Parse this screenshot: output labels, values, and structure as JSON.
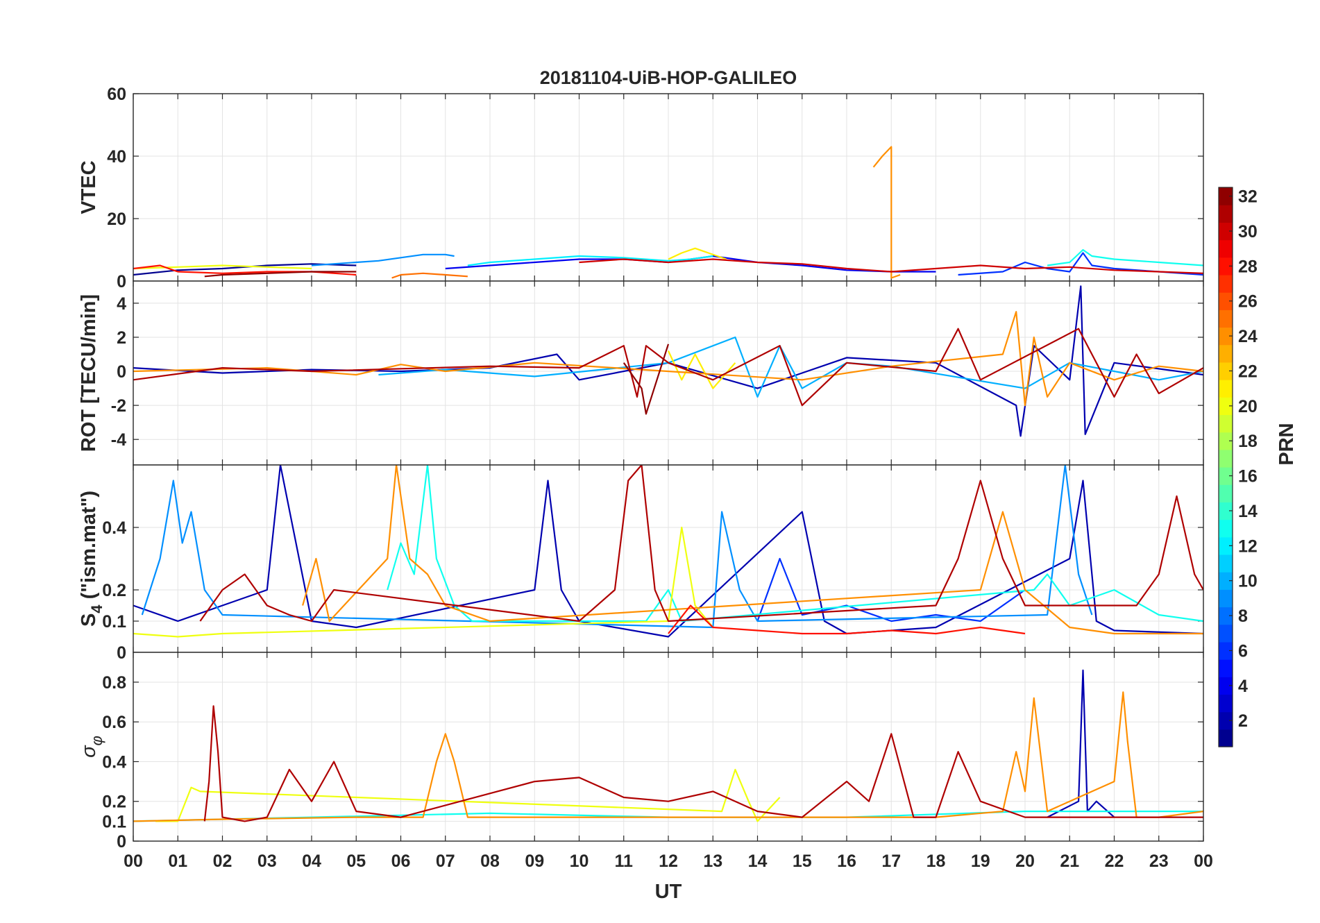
{
  "figure": {
    "title": "20181104-UiB-HOP-GALILEO",
    "xlabel": "UT"
  },
  "chart_data": [
    {
      "type": "line",
      "panel": "vtec",
      "ylabel": "VTEC",
      "xlim": [
        0,
        24
      ],
      "ylim": [
        0,
        60
      ],
      "yticks": [
        0,
        20,
        40,
        60
      ],
      "xtick_labels": [
        "00",
        "01",
        "02",
        "03",
        "04",
        "05",
        "06",
        "07",
        "08",
        "09",
        "10",
        "11",
        "12",
        "13",
        "14",
        "15",
        "16",
        "17",
        "18",
        "19",
        "20",
        "21",
        "22",
        "23",
        "00"
      ],
      "grid": true,
      "series": [
        {
          "prn": 1,
          "x": [
            0,
            1,
            2,
            3,
            4,
            5
          ],
          "y": [
            2,
            3.5,
            4,
            5,
            5.5,
            5
          ]
        },
        {
          "prn": 4,
          "x": [
            7,
            8,
            9,
            10,
            11,
            12,
            13,
            14,
            15,
            16,
            17,
            18
          ],
          "y": [
            4,
            5,
            6,
            7,
            7,
            6,
            8,
            6,
            5,
            3.5,
            3,
            3
          ]
        },
        {
          "prn": 6,
          "x": [
            18.5,
            19.5,
            20,
            20.5,
            21,
            21.3,
            21.5,
            22,
            23,
            24
          ],
          "y": [
            2,
            3,
            6,
            4,
            3,
            9,
            5,
            4,
            3,
            2
          ]
        },
        {
          "prn": 9,
          "x": [
            4,
            5,
            5.5,
            6,
            6.5,
            7,
            7.2
          ],
          "y": [
            5,
            6,
            6.5,
            7.5,
            8.5,
            8.5,
            8
          ]
        },
        {
          "prn": 12,
          "x": [
            7.5,
            8,
            9,
            10,
            11,
            12,
            12.5,
            13
          ],
          "y": [
            5,
            6,
            7,
            8,
            7.5,
            6.5,
            7,
            8
          ]
        },
        {
          "prn": 13,
          "x": [
            20.5,
            21,
            21.3,
            21.5,
            22,
            23,
            24
          ],
          "y": [
            5,
            6,
            10,
            8,
            7,
            6,
            5
          ]
        },
        {
          "prn": 20,
          "x": [
            0,
            1,
            2,
            3,
            4
          ],
          "y": [
            4,
            4.5,
            5,
            4.5,
            4
          ]
        },
        {
          "prn": 21,
          "x": [
            12,
            12.3,
            12.6,
            12.9,
            13.3
          ],
          "y": [
            7,
            9,
            10.5,
            9,
            7
          ]
        },
        {
          "prn": 24,
          "x": [
            16.6,
            16.8,
            17,
            17,
            17.2
          ],
          "y": [
            36.5,
            40,
            43,
            1,
            2
          ]
        },
        {
          "prn": 25,
          "x": [
            5.8,
            6,
            6.5,
            7,
            7.5
          ],
          "y": [
            1,
            2,
            2.5,
            2,
            1.5
          ]
        },
        {
          "prn": 28,
          "x": [
            0,
            0.6,
            1,
            2,
            3,
            4,
            5
          ],
          "y": [
            4,
            5,
            3,
            2.5,
            3,
            3,
            2
          ]
        },
        {
          "prn": 30,
          "x": [
            10,
            11,
            12,
            13,
            14,
            15,
            16,
            17,
            18,
            19,
            20,
            21,
            22,
            23,
            24
          ],
          "y": [
            6,
            7,
            6,
            7,
            6,
            5.5,
            4,
            3,
            4,
            5,
            4,
            4.5,
            3.5,
            3,
            2.5
          ]
        },
        {
          "prn": 32,
          "x": [
            1.6,
            2,
            3,
            4,
            5
          ],
          "y": [
            1.5,
            2,
            2.5,
            3,
            3
          ]
        }
      ]
    },
    {
      "type": "line",
      "panel": "rot",
      "ylabel": "ROT [TECU/min]",
      "xlim": [
        0,
        24
      ],
      "ylim": [
        -5.5,
        5.3
      ],
      "yticks": [
        -4,
        -2,
        0,
        2,
        4
      ],
      "ytick_labels": [
        "-4",
        "-2",
        "0",
        "2",
        "4"
      ],
      "grid": true,
      "series": [
        {
          "prn": 2,
          "x": [
            0,
            2,
            4,
            6,
            8,
            9.5,
            10,
            12,
            14,
            16,
            18,
            19.8,
            19.9,
            20.2,
            21,
            21.25,
            21.35,
            22,
            24
          ],
          "y": [
            0.2,
            -0.1,
            0.1,
            0,
            0.2,
            1,
            -0.5,
            0.5,
            -1,
            0.8,
            0.5,
            -2,
            -3.8,
            1.5,
            -0.5,
            5,
            -3.7,
            0.5,
            -0.2
          ]
        },
        {
          "prn": 10,
          "x": [
            5.5,
            7,
            9,
            12,
            13.5,
            14,
            14.5,
            15,
            16,
            17,
            20,
            21,
            23,
            24
          ],
          "y": [
            -0.2,
            0.1,
            -0.3,
            0.5,
            2,
            -1.5,
            1.5,
            -1,
            0.5,
            0.3,
            -1,
            0.5,
            -0.5,
            0
          ]
        },
        {
          "prn": 21,
          "x": [
            12,
            12.3,
            12.6,
            13,
            13.5
          ],
          "y": [
            1.2,
            -0.5,
            1,
            -1,
            0.5
          ]
        },
        {
          "prn": 24,
          "x": [
            0,
            3,
            5,
            6,
            7,
            9,
            15,
            17,
            19.5,
            19.8,
            20,
            20.2,
            20.5,
            21,
            22,
            23,
            24
          ],
          "y": [
            0,
            0.2,
            -0.2,
            0.4,
            0,
            0.5,
            -0.5,
            0.3,
            1,
            3.5,
            -2,
            2,
            -1.5,
            0.5,
            -0.5,
            0.3,
            0
          ]
        },
        {
          "prn": 31,
          "x": [
            0,
            2,
            4,
            8,
            10,
            11,
            11.3,
            11.5,
            12,
            13,
            14.5,
            15,
            16,
            18,
            18.5,
            19,
            21.2,
            22,
            22.5,
            23,
            24
          ],
          "y": [
            -0.5,
            0.2,
            0,
            0.3,
            0.2,
            1.5,
            -1.5,
            1.5,
            0.5,
            -0.5,
            1.5,
            -2,
            0.5,
            0,
            2.5,
            -0.5,
            2.5,
            -1.5,
            1,
            -1.3,
            0.2
          ]
        },
        {
          "prn": 32,
          "x": [
            11,
            11.4,
            11.5,
            12
          ],
          "y": [
            0.5,
            -1,
            -2.5,
            1.6
          ]
        }
      ]
    },
    {
      "type": "line",
      "panel": "s4",
      "ylabel": "S4 (\"ism.mat\")",
      "ylabel_main": "S",
      "ylabel_sub": "4",
      "ylabel_rest": " (\"ism.mat\")",
      "xlim": [
        0,
        24
      ],
      "ylim": [
        0,
        0.6
      ],
      "yticks": [
        0,
        0.1,
        0.2,
        0.4
      ],
      "ytick_labels": [
        "0",
        "0.1",
        "0.2",
        "0.4"
      ],
      "grid": true,
      "series": [
        {
          "prn": 2,
          "x": [
            0,
            1,
            2,
            3,
            3.3,
            4,
            5,
            9,
            9.3,
            9.6,
            10,
            12,
            15,
            15.5,
            16,
            18,
            21,
            21.3,
            21.6,
            22,
            24
          ],
          "y": [
            0.15,
            0.1,
            0.15,
            0.2,
            0.6,
            0.1,
            0.08,
            0.2,
            0.55,
            0.2,
            0.1,
            0.05,
            0.45,
            0.1,
            0.06,
            0.08,
            0.3,
            0.55,
            0.1,
            0.07,
            0.06
          ]
        },
        {
          "prn": 6,
          "x": [
            14,
            14.5,
            15,
            16,
            17,
            18,
            19,
            20
          ],
          "y": [
            0.1,
            0.3,
            0.12,
            0.15,
            0.1,
            0.12,
            0.1,
            0.2
          ]
        },
        {
          "prn": 9,
          "x": [
            0.2,
            0.6,
            0.9,
            1.1,
            1.3,
            1.6,
            2,
            13,
            13.2,
            13.6,
            14,
            20.5,
            20.9,
            21.2,
            21.5
          ],
          "y": [
            0.12,
            0.3,
            0.55,
            0.35,
            0.45,
            0.2,
            0.12,
            0.08,
            0.45,
            0.2,
            0.1,
            0.12,
            0.6,
            0.25,
            0.12
          ]
        },
        {
          "prn": 13,
          "x": [
            5.7,
            6,
            6.3,
            6.6,
            6.8,
            7.2,
            7.6,
            11.5,
            12,
            12.3,
            20.2,
            20.5,
            21,
            22,
            23,
            24
          ],
          "y": [
            0.2,
            0.35,
            0.25,
            0.6,
            0.3,
            0.15,
            0.1,
            0.1,
            0.2,
            0.1,
            0.2,
            0.25,
            0.15,
            0.2,
            0.12,
            0.1
          ]
        },
        {
          "prn": 20,
          "x": [
            0,
            1,
            2,
            12,
            12.3,
            12.6,
            13
          ],
          "y": [
            0.06,
            0.05,
            0.06,
            0.1,
            0.4,
            0.15,
            0.08
          ]
        },
        {
          "prn": 24,
          "x": [
            3.8,
            4.1,
            4.4,
            5.7,
            5.9,
            6.2,
            6.6,
            7,
            8,
            19,
            19.5,
            20,
            21,
            22,
            24
          ],
          "y": [
            0.15,
            0.3,
            0.1,
            0.3,
            0.6,
            0.3,
            0.25,
            0.15,
            0.1,
            0.2,
            0.45,
            0.2,
            0.08,
            0.06,
            0.06
          ]
        },
        {
          "prn": 28,
          "x": [
            12,
            12.5,
            13,
            14,
            15,
            16,
            17,
            18,
            19,
            20
          ],
          "y": [
            0.06,
            0.15,
            0.08,
            0.07,
            0.06,
            0.06,
            0.07,
            0.06,
            0.08,
            0.06
          ]
        },
        {
          "prn": 31,
          "x": [
            1.5,
            2,
            2.5,
            3,
            3.5,
            4,
            4.5,
            10,
            10.8,
            11.1,
            11.4,
            11.7,
            12,
            18,
            18.5,
            19,
            19.5,
            20,
            22.5,
            23,
            23.4,
            23.8,
            24
          ],
          "y": [
            0.1,
            0.2,
            0.25,
            0.15,
            0.12,
            0.1,
            0.2,
            0.1,
            0.2,
            0.55,
            0.6,
            0.2,
            0.1,
            0.15,
            0.3,
            0.55,
            0.3,
            0.15,
            0.15,
            0.25,
            0.5,
            0.25,
            0.2
          ]
        }
      ]
    },
    {
      "type": "line",
      "panel": "sigma_phi",
      "ylabel": "σφ",
      "ylabel_main": "σ",
      "ylabel_sub": "φ",
      "xlim": [
        0,
        24
      ],
      "ylim": [
        0,
        0.95
      ],
      "yticks": [
        0,
        0.1,
        0.2,
        0.4,
        0.6,
        0.8
      ],
      "ytick_labels": [
        "0",
        "0.1",
        "0.2",
        "0.4",
        "0.6",
        "0.8"
      ],
      "grid": true,
      "series": [
        {
          "prn": 2,
          "x": [
            20.5,
            21.2,
            21.3,
            21.4,
            21.6,
            22
          ],
          "y": [
            0.12,
            0.2,
            0.86,
            0.15,
            0.2,
            0.12
          ]
        },
        {
          "prn": 13,
          "x": [
            0,
            4,
            8,
            12,
            16,
            20,
            24
          ],
          "y": [
            0.1,
            0.12,
            0.14,
            0.12,
            0.12,
            0.15,
            0.15
          ]
        },
        {
          "prn": 20,
          "x": [
            0.5,
            1,
            1.3,
            1.5,
            13.2,
            13.5,
            13.8,
            14,
            14.5
          ],
          "y": [
            0.1,
            0.1,
            0.27,
            0.25,
            0.15,
            0.36,
            0.2,
            0.1,
            0.22
          ]
        },
        {
          "prn": 24,
          "x": [
            0,
            2,
            5,
            6.5,
            6.8,
            7,
            7.2,
            7.5,
            18,
            19.5,
            19.8,
            20,
            20.2,
            20.5,
            21,
            22,
            22.2,
            22.3,
            22.5,
            23,
            24
          ],
          "y": [
            0.1,
            0.11,
            0.12,
            0.12,
            0.4,
            0.54,
            0.4,
            0.12,
            0.12,
            0.15,
            0.45,
            0.25,
            0.72,
            0.15,
            0.2,
            0.3,
            0.75,
            0.5,
            0.12,
            0.12,
            0.15
          ]
        },
        {
          "prn": 31,
          "x": [
            1.6,
            1.7,
            1.8,
            1.9,
            2,
            2.5,
            3,
            3.5,
            4,
            4.5,
            5,
            6,
            9,
            10,
            11,
            12,
            13,
            14,
            15,
            16,
            16.5,
            17,
            17.5,
            18,
            18.5,
            19,
            20,
            24
          ],
          "y": [
            0.1,
            0.3,
            0.68,
            0.45,
            0.12,
            0.1,
            0.12,
            0.36,
            0.2,
            0.4,
            0.15,
            0.12,
            0.3,
            0.32,
            0.22,
            0.2,
            0.25,
            0.15,
            0.12,
            0.3,
            0.2,
            0.54,
            0.12,
            0.12,
            0.45,
            0.2,
            0.12,
            0.12
          ]
        }
      ]
    }
  ],
  "colorbar": {
    "label": "PRN",
    "range": [
      1,
      32
    ],
    "ticks": [
      2,
      4,
      6,
      8,
      10,
      12,
      14,
      16,
      18,
      20,
      22,
      24,
      26,
      28,
      30,
      32
    ],
    "colormap": "jet",
    "levels": 32
  }
}
